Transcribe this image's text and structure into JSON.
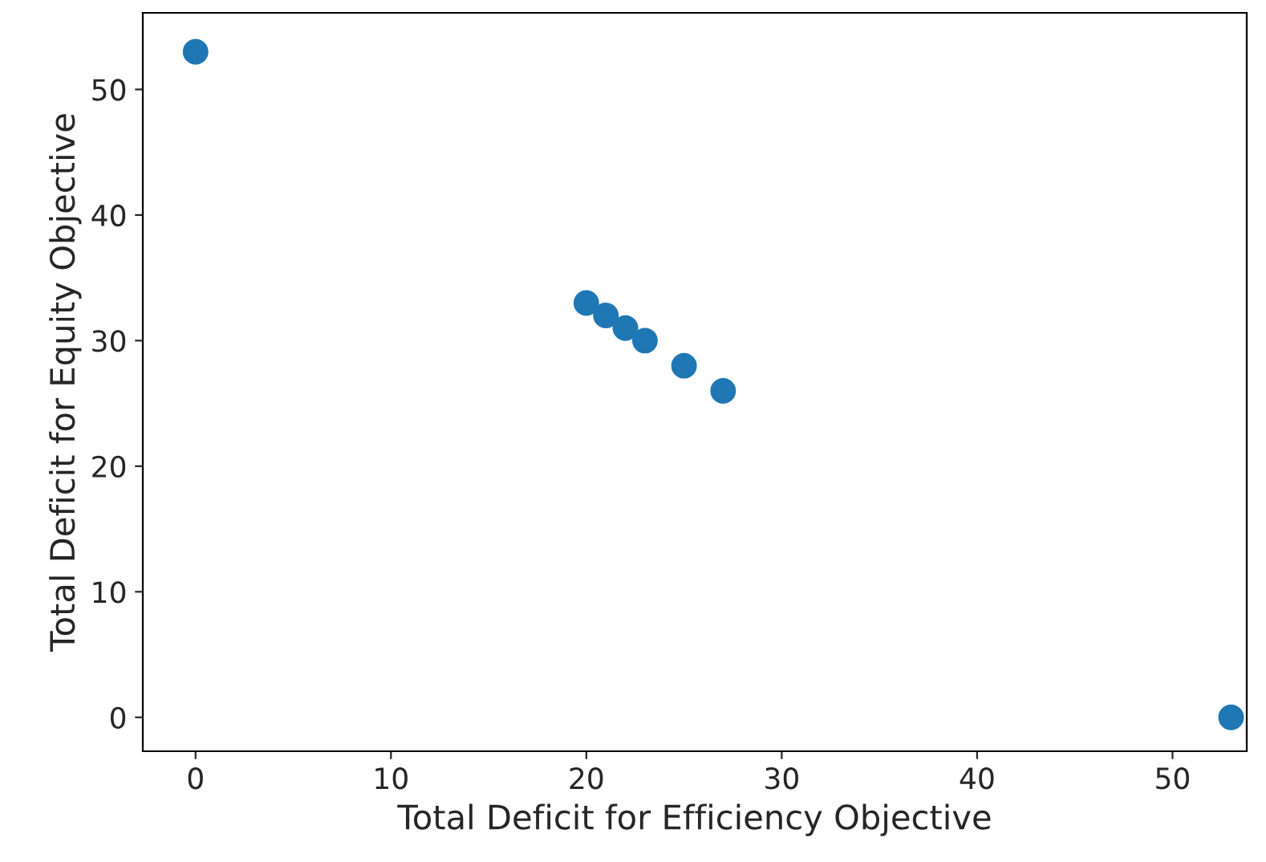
{
  "chart_data": {
    "type": "scatter",
    "xlabel": "Total Deficit for Efficiency Objective",
    "ylabel": "Total Deficit for Equity Objective",
    "x": [
      0,
      20,
      21,
      22,
      23,
      25,
      27,
      53
    ],
    "series": [
      {
        "color": "#1f77b4",
        "values": [
          53,
          33,
          32,
          31,
          30,
          28,
          26,
          0
        ]
      }
    ],
    "xlim": [
      -2.7,
      53.8
    ],
    "xticks": [
      0,
      10,
      20,
      30,
      40,
      50
    ],
    "ylim": [
      -2.7,
      56.1
    ],
    "yticks": [
      0,
      10,
      20,
      30,
      40,
      50
    ],
    "grid": false,
    "legend": false,
    "marker": "circle"
  }
}
